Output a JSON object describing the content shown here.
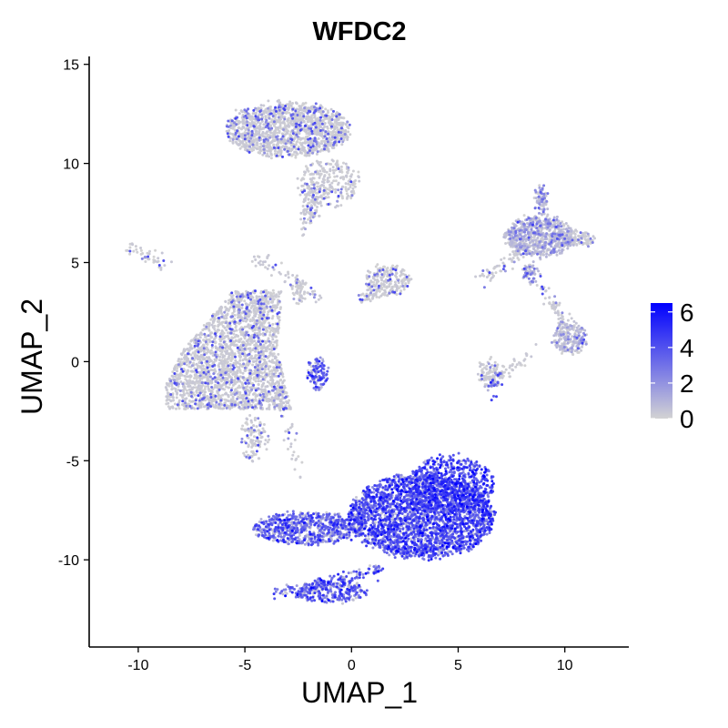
{
  "chart_data": {
    "type": "scatter",
    "title": "WFDC2",
    "xlabel": "UMAP_1",
    "ylabel": "UMAP_2",
    "xlim": [
      -12.3,
      13.0
    ],
    "ylim": [
      -14.4,
      15.4
    ],
    "xticks": [
      -10,
      -5,
      0,
      5,
      10
    ],
    "yticks": [
      -10,
      -5,
      0,
      5,
      10,
      15
    ],
    "grid": false,
    "legend": {
      "placement": "right",
      "min": 0,
      "max": 6.5,
      "ticks": [
        0,
        2,
        4,
        6
      ],
      "colors": {
        "low": "#d3d3d3",
        "high": "#0000ff"
      }
    },
    "clusters": [
      {
        "cx": -3.0,
        "cy": 11.7,
        "rx": 2.9,
        "ry": 1.35,
        "count": 1500,
        "mean_expr": 0.5,
        "kind": "ellipse"
      },
      {
        "cx": -1.1,
        "cy": 9.0,
        "rx": 1.4,
        "ry": 1.2,
        "count": 260,
        "mean_expr": 0.6,
        "kind": "ellipse"
      },
      {
        "cx": -1.9,
        "cy": 7.9,
        "rx": 0.4,
        "ry": 0.9,
        "count": 70,
        "mean_expr": 0.4,
        "kind": "ellipse"
      },
      {
        "cx": -5.6,
        "cy": 0.6,
        "rx": 3.1,
        "ry": 3.0,
        "count": 2400,
        "mean_expr": 0.4,
        "kind": "triangle"
      },
      {
        "cx": -1.6,
        "cy": -0.6,
        "rx": 0.45,
        "ry": 0.8,
        "count": 110,
        "mean_expr": 3.4,
        "kind": "ellipse"
      },
      {
        "cx": -4.6,
        "cy": -3.9,
        "rx": 0.6,
        "ry": 1.2,
        "count": 120,
        "mean_expr": 0.3,
        "kind": "ellipse"
      },
      {
        "cx": -2.5,
        "cy": 3.6,
        "rx": 0.3,
        "ry": 0.7,
        "count": 50,
        "mean_expr": 0.4,
        "kind": "ellipse"
      },
      {
        "cx": 1.7,
        "cy": 4.1,
        "rx": 1.0,
        "ry": 0.8,
        "count": 220,
        "mean_expr": 0.8,
        "kind": "ellipse"
      },
      {
        "cx": 3.3,
        "cy": -7.8,
        "rx": 3.4,
        "ry": 2.1,
        "count": 2700,
        "mean_expr": 3.8,
        "kind": "ellipse"
      },
      {
        "cx": 4.6,
        "cy": -6.2,
        "rx": 2.1,
        "ry": 1.4,
        "count": 600,
        "mean_expr": 4.2,
        "kind": "ellipse"
      },
      {
        "cx": -2.0,
        "cy": -8.4,
        "rx": 2.6,
        "ry": 0.8,
        "count": 700,
        "mean_expr": 3.3,
        "kind": "ellipse"
      },
      {
        "cx": -1.0,
        "cy": -11.6,
        "rx": 1.7,
        "ry": 0.55,
        "count": 260,
        "mean_expr": 3.5,
        "kind": "ellipse"
      },
      {
        "cx": 8.8,
        "cy": 6.3,
        "rx": 1.6,
        "ry": 1.0,
        "count": 700,
        "mean_expr": 1.6,
        "kind": "ellipse"
      },
      {
        "cx": 10.5,
        "cy": 6.2,
        "rx": 0.9,
        "ry": 0.4,
        "count": 120,
        "mean_expr": 0.4,
        "kind": "ellipse"
      },
      {
        "cx": 8.9,
        "cy": 8.2,
        "rx": 0.3,
        "ry": 0.7,
        "count": 80,
        "mean_expr": 2.0,
        "kind": "ellipse"
      },
      {
        "cx": 10.2,
        "cy": 1.2,
        "rx": 0.8,
        "ry": 0.8,
        "count": 200,
        "mean_expr": 1.4,
        "kind": "ellipse"
      },
      {
        "cx": 6.5,
        "cy": -0.6,
        "rx": 0.6,
        "ry": 0.6,
        "count": 110,
        "mean_expr": 0.8,
        "kind": "ellipse"
      },
      {
        "cx": 8.4,
        "cy": 4.5,
        "rx": 0.35,
        "ry": 0.5,
        "count": 60,
        "mean_expr": 2.2,
        "kind": "ellipse"
      }
    ],
    "strands": [
      {
        "from": [
          -10.4,
          5.8
        ],
        "to": [
          -8.8,
          4.9
        ],
        "count": 45,
        "mean_expr": 0.2
      },
      {
        "from": [
          -3.3,
          -1.5
        ],
        "to": [
          -2.5,
          -5.8
        ],
        "count": 40,
        "mean_expr": 0.2
      },
      {
        "from": [
          -1.5,
          9.0
        ],
        "to": [
          -2.2,
          6.5
        ],
        "count": 30,
        "mean_expr": 0.2
      },
      {
        "from": [
          1.2,
          3.5
        ],
        "to": [
          0.4,
          3.1
        ],
        "count": 40,
        "mean_expr": 0.5
      },
      {
        "from": [
          -3.5,
          -11.7
        ],
        "to": [
          1.4,
          -10.5
        ],
        "count": 140,
        "mean_expr": 3.5
      },
      {
        "from": [
          6.9,
          4.6
        ],
        "to": [
          6.1,
          4.3
        ],
        "count": 30,
        "mean_expr": 0.5
      },
      {
        "from": [
          7.0,
          4.8
        ],
        "to": [
          7.9,
          5.6
        ],
        "count": 35,
        "mean_expr": 0.6
      },
      {
        "from": [
          8.9,
          4.0
        ],
        "to": [
          10.1,
          1.6
        ],
        "count": 60,
        "mean_expr": 0.6
      },
      {
        "from": [
          7.2,
          -0.6
        ],
        "to": [
          8.4,
          0.4
        ],
        "count": 30,
        "mean_expr": 0.3
      },
      {
        "from": [
          6.6,
          -1.5
        ],
        "to": [
          6.7,
          -0.9
        ],
        "count": 20,
        "mean_expr": 3.0
      },
      {
        "from": [
          -4.6,
          5.3
        ],
        "to": [
          -1.5,
          3.2
        ],
        "count": 60,
        "mean_expr": 0.2
      }
    ]
  }
}
